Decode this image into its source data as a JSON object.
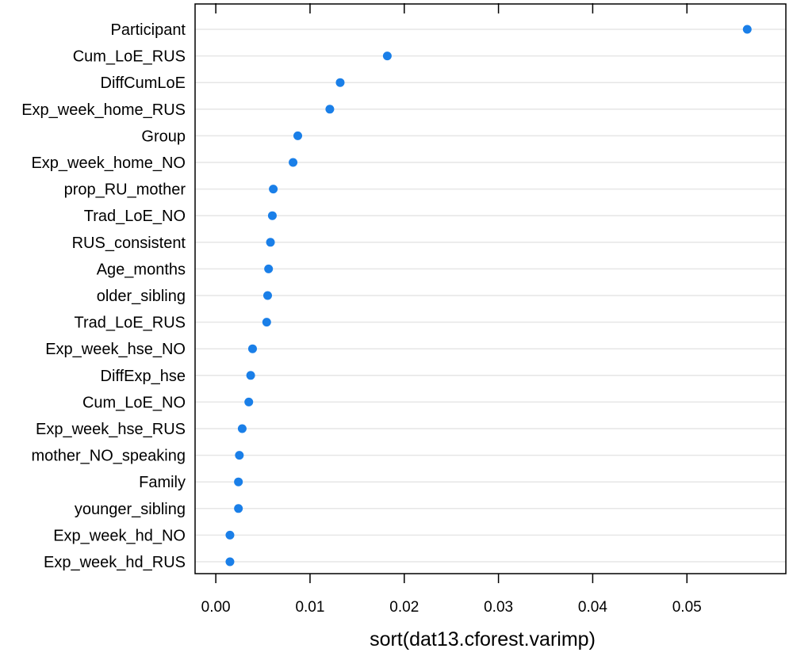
{
  "chart_data": {
    "type": "scatter",
    "title": "",
    "xlabel": "sort(dat13.cforest.varimp)",
    "ylabel": "",
    "xlim": [
      -0.0022,
      0.0605
    ],
    "xticks": [
      0.0,
      0.01,
      0.02,
      0.03,
      0.04,
      0.05
    ],
    "xtick_labels": [
      "0.00",
      "0.01",
      "0.02",
      "0.03",
      "0.04",
      "0.05"
    ],
    "grid": true,
    "legend": "none",
    "point_color": "#1a7fe8",
    "gridline_color": "#e6e6e6",
    "categories": [
      "Participant",
      "Cum_LoE_RUS",
      "DiffCumLoE",
      "Exp_week_home_RUS",
      "Group",
      "Exp_week_home_NO",
      "prop_RU_mother",
      "Trad_LoE_NO",
      "RUS_consistent",
      "Age_months",
      "older_sibling",
      "Trad_LoE_RUS",
      "Exp_week_hse_NO",
      "DiffExp_hse",
      "Cum_LoE_NO",
      "Exp_week_hse_RUS",
      "mother_NO_speaking",
      "Family",
      "younger_sibling",
      "Exp_week_hd_NO",
      "Exp_week_hd_RUS"
    ],
    "values": [
      0.0564,
      0.0182,
      0.0132,
      0.0121,
      0.0087,
      0.0082,
      0.0061,
      0.006,
      0.0058,
      0.0056,
      0.0055,
      0.0054,
      0.0039,
      0.0037,
      0.0035,
      0.0028,
      0.0025,
      0.0024,
      0.0024,
      0.0015,
      0.0015
    ]
  }
}
